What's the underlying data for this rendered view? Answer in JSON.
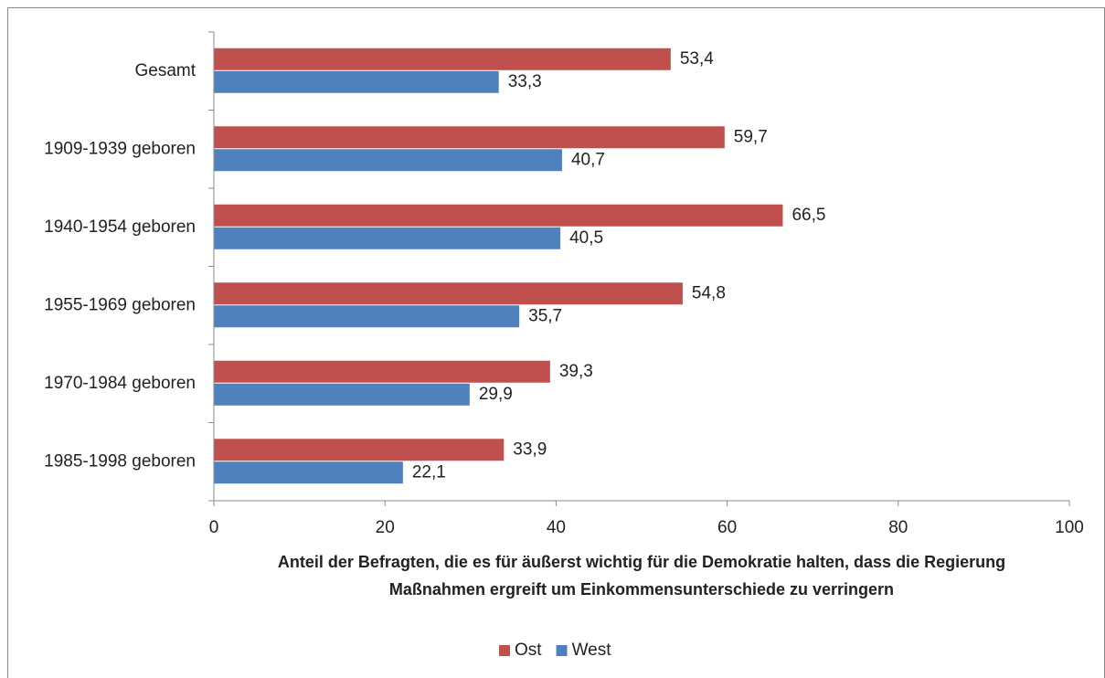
{
  "chart_data": {
    "type": "bar",
    "orientation": "horizontal",
    "categories": [
      "Gesamt",
      "1909-1939 geboren",
      "1940-1954 geboren",
      "1955-1969 geboren",
      "1970-1984 geboren",
      "1985-1998 geboren"
    ],
    "series": [
      {
        "name": "Ost",
        "color": "#c0504d",
        "values": [
          53.4,
          59.7,
          66.5,
          54.8,
          39.3,
          33.9
        ],
        "value_labels": [
          "53,4",
          "59,7",
          "66,5",
          "54,8",
          "39,3",
          "33,9"
        ]
      },
      {
        "name": "West",
        "color": "#4f81bd",
        "values": [
          33.3,
          40.7,
          40.5,
          35.7,
          29.9,
          22.1
        ],
        "value_labels": [
          "33,3",
          "40,7",
          "40,5",
          "35,7",
          "29,9",
          "22,1"
        ]
      }
    ],
    "xlabel": [
      "Anteil der Befragten, die es für äußerst wichtig für die Demokratie halten, dass die Regierung",
      "Maßnahmen ergreift um Einkommensunterschiede zu verringern"
    ],
    "xlim": [
      0,
      100
    ],
    "xticks": [
      0,
      20,
      40,
      60,
      80,
      100
    ],
    "grid": false,
    "legend": "bottom"
  }
}
